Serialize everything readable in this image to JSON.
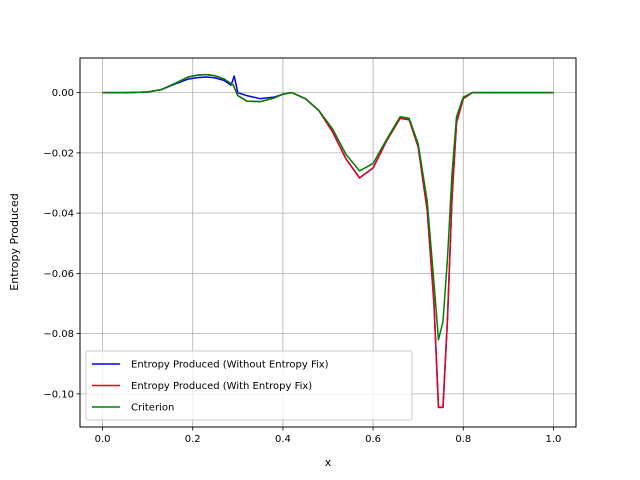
{
  "chart_data": {
    "type": "line",
    "title": "",
    "xlabel": "x",
    "ylabel": "Entropy Produced",
    "xlim": [
      -0.05,
      1.05
    ],
    "ylim": [
      -0.111,
      0.0115
    ],
    "xticks": [
      0.0,
      0.2,
      0.4,
      0.6,
      0.8,
      1.0
    ],
    "xtick_labels": [
      "0.0",
      "0.2",
      "0.4",
      "0.6",
      "0.8",
      "1.0"
    ],
    "yticks": [
      0.0,
      -0.02,
      -0.04,
      -0.06,
      -0.08,
      -0.1
    ],
    "ytick_labels": [
      "0.00",
      "−0.02",
      "−0.04",
      "−0.06",
      "−0.08",
      "−0.10"
    ],
    "grid": true,
    "legend_position": "lower-left",
    "series": [
      {
        "name": "Entropy Produced (Without Entropy Fix)",
        "color": "#0000ff",
        "x": [
          0.0,
          0.05,
          0.1,
          0.13,
          0.16,
          0.19,
          0.21,
          0.23,
          0.25,
          0.27,
          0.285,
          0.292,
          0.3,
          0.32,
          0.35,
          0.38,
          0.4,
          0.42,
          0.45,
          0.48,
          0.51,
          0.54,
          0.57,
          0.6,
          0.63,
          0.66,
          0.68,
          0.7,
          0.72,
          0.735,
          0.745,
          0.755,
          0.765,
          0.775,
          0.785,
          0.8,
          0.82,
          0.85,
          0.9,
          1.0
        ],
        "y": [
          0.0,
          0.0,
          0.0002,
          0.001,
          0.0028,
          0.0045,
          0.005,
          0.0052,
          0.0049,
          0.004,
          0.0025,
          0.0055,
          0.0,
          -0.001,
          -0.002,
          -0.0015,
          -0.0005,
          0.0,
          -0.002,
          -0.006,
          -0.013,
          -0.022,
          -0.0283,
          -0.025,
          -0.016,
          -0.0085,
          -0.009,
          -0.018,
          -0.039,
          -0.07,
          -0.1045,
          -0.1045,
          -0.075,
          -0.035,
          -0.01,
          -0.002,
          0.0,
          0.0,
          0.0,
          0.0
        ]
      },
      {
        "name": "Entropy Produced (With Entropy Fix)",
        "color": "#e6001a",
        "x": [
          0.0,
          0.05,
          0.1,
          0.13,
          0.16,
          0.19,
          0.21,
          0.23,
          0.25,
          0.27,
          0.29,
          0.3,
          0.32,
          0.35,
          0.38,
          0.4,
          0.42,
          0.45,
          0.48,
          0.51,
          0.54,
          0.57,
          0.6,
          0.63,
          0.66,
          0.68,
          0.7,
          0.72,
          0.735,
          0.745,
          0.755,
          0.765,
          0.775,
          0.785,
          0.8,
          0.82,
          0.85,
          0.9,
          1.0
        ],
        "y": [
          0.0,
          0.0,
          0.0002,
          0.001,
          0.003,
          0.0052,
          0.0058,
          0.006,
          0.0056,
          0.0045,
          0.0025,
          -0.001,
          -0.0028,
          -0.003,
          -0.0018,
          -0.0005,
          0.0,
          -0.002,
          -0.006,
          -0.013,
          -0.022,
          -0.0283,
          -0.025,
          -0.016,
          -0.0085,
          -0.009,
          -0.018,
          -0.039,
          -0.07,
          -0.1045,
          -0.1045,
          -0.075,
          -0.035,
          -0.01,
          -0.002,
          0.0,
          0.0,
          0.0,
          0.0
        ]
      },
      {
        "name": "Criterion",
        "color": "#008000",
        "x": [
          0.0,
          0.05,
          0.1,
          0.13,
          0.16,
          0.19,
          0.21,
          0.23,
          0.25,
          0.27,
          0.29,
          0.3,
          0.32,
          0.35,
          0.38,
          0.4,
          0.42,
          0.45,
          0.48,
          0.51,
          0.54,
          0.57,
          0.6,
          0.63,
          0.66,
          0.68,
          0.7,
          0.72,
          0.735,
          0.745,
          0.755,
          0.765,
          0.775,
          0.785,
          0.8,
          0.82,
          0.85,
          0.9,
          1.0
        ],
        "y": [
          0.0,
          0.0,
          0.0002,
          0.001,
          0.003,
          0.0052,
          0.0058,
          0.006,
          0.0056,
          0.0045,
          0.0025,
          -0.001,
          -0.0028,
          -0.003,
          -0.0018,
          -0.0005,
          0.0,
          -0.002,
          -0.006,
          -0.012,
          -0.0205,
          -0.026,
          -0.0235,
          -0.0155,
          -0.008,
          -0.0085,
          -0.017,
          -0.036,
          -0.063,
          -0.082,
          -0.076,
          -0.055,
          -0.027,
          -0.008,
          -0.0015,
          0.0,
          0.0,
          0.0,
          0.0
        ]
      }
    ]
  }
}
